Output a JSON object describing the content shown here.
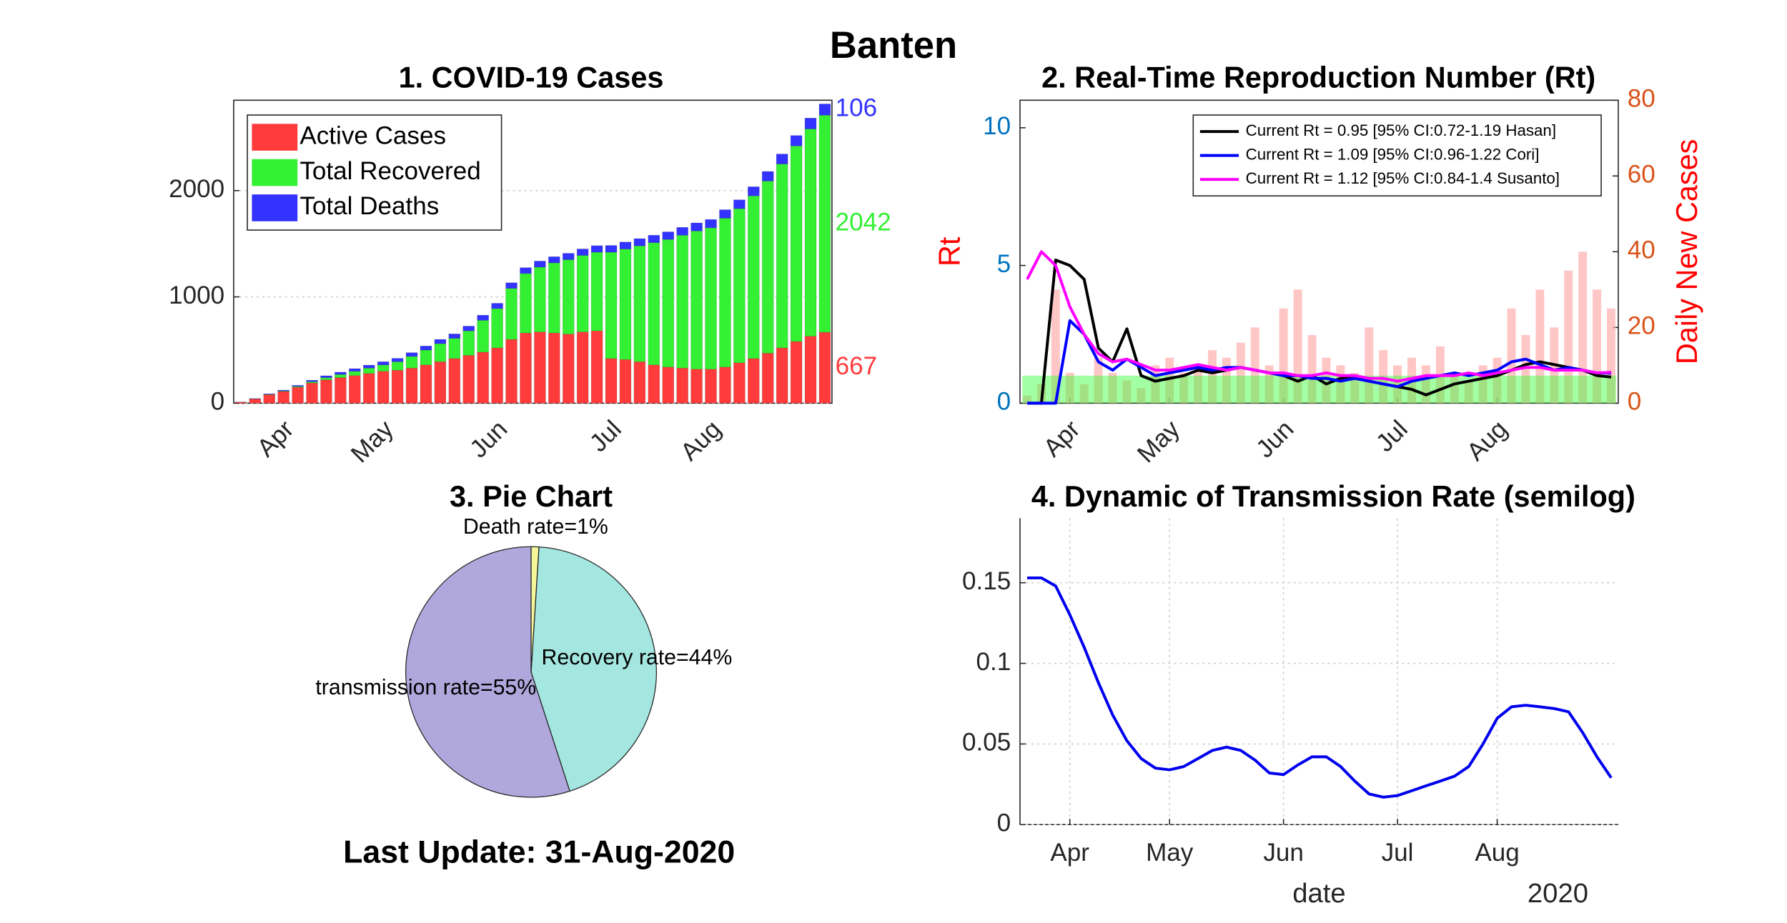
{
  "title": "Banten",
  "footer": "Last Update: 31-Aug-2020",
  "chart_data": [
    {
      "type": "bar",
      "title": "1. COVID-19 Cases",
      "stacked": true,
      "grid": true,
      "legend": "upper left",
      "last_value_labels": true,
      "categories": [
        null,
        null,
        null,
        "Apr",
        null,
        null,
        null,
        null,
        null,
        null,
        "May",
        null,
        null,
        null,
        null,
        null,
        null,
        null,
        "Jun",
        null,
        null,
        null,
        null,
        null,
        null,
        null,
        "Jul",
        null,
        null,
        null,
        null,
        null,
        null,
        "Aug",
        null,
        null,
        null,
        null,
        null,
        null,
        null,
        null
      ],
      "ylim": [
        0,
        2850
      ],
      "yticks": [
        0,
        1000,
        2000
      ],
      "series": [
        {
          "name": "Active Cases",
          "color": "#ff3b3b",
          "values": [
            10,
            40,
            80,
            110,
            150,
            190,
            220,
            240,
            260,
            280,
            300,
            310,
            330,
            360,
            390,
            420,
            450,
            480,
            520,
            600,
            660,
            670,
            660,
            650,
            670,
            680,
            420,
            410,
            390,
            360,
            340,
            330,
            320,
            320,
            340,
            380,
            420,
            470,
            520,
            580,
            630,
            667
          ]
        },
        {
          "name": "Total Recovered",
          "color": "#33f033",
          "values": [
            0,
            1,
            3,
            5,
            8,
            12,
            20,
            30,
            40,
            50,
            60,
            80,
            110,
            140,
            170,
            190,
            230,
            300,
            370,
            480,
            560,
            610,
            660,
            700,
            720,
            740,
            1000,
            1040,
            1090,
            1150,
            1200,
            1250,
            1300,
            1330,
            1400,
            1450,
            1530,
            1620,
            1730,
            1840,
            1950,
            2042
          ]
        },
        {
          "name": "Total Deaths",
          "color": "#3333ff",
          "values": [
            1,
            3,
            5,
            8,
            10,
            14,
            18,
            22,
            25,
            28,
            30,
            32,
            35,
            38,
            40,
            42,
            45,
            48,
            50,
            53,
            55,
            57,
            58,
            60,
            61,
            62,
            64,
            66,
            68,
            70,
            72,
            74,
            76,
            78,
            80,
            83,
            86,
            90,
            94,
            98,
            102,
            106
          ]
        }
      ]
    },
    {
      "type": "line",
      "title": "2. Real-Time Reproduction Number (Rt)",
      "ylabel": "Rt",
      "y2label": "Daily New Cases",
      "ylabel_color": "#ff0000",
      "ytick_color": "#0072bd",
      "y2tick_color": "#d95319",
      "legend": "upper right",
      "threshold": 1,
      "threshold_color": "#33ff33",
      "categories": [
        null,
        null,
        null,
        "Apr",
        null,
        null,
        null,
        null,
        null,
        null,
        "May",
        null,
        null,
        null,
        null,
        null,
        null,
        null,
        "Jun",
        null,
        null,
        null,
        null,
        null,
        null,
        null,
        "Jul",
        null,
        null,
        null,
        null,
        null,
        null,
        "Aug",
        null,
        null,
        null,
        null,
        null,
        null,
        null,
        null
      ],
      "ylim": [
        0,
        11
      ],
      "yticks": [
        0,
        5,
        10
      ],
      "y2lim": [
        0,
        80
      ],
      "y2ticks": [
        0,
        20,
        40,
        60,
        80
      ],
      "series": [
        {
          "type": "bar",
          "axis": "y2",
          "color": "#ffb3b3",
          "values": [
            2,
            5,
            30,
            8,
            5,
            12,
            8,
            6,
            4,
            10,
            12,
            8,
            10,
            14,
            12,
            16,
            20,
            10,
            25,
            30,
            18,
            12,
            10,
            8,
            20,
            14,
            10,
            12,
            10,
            15,
            8,
            6,
            10,
            12,
            25,
            18,
            30,
            20,
            35,
            40,
            30,
            25
          ]
        },
        {
          "name": "Current Rt = 0.95 [95% CI:0.72-1.19 Hasan]",
          "color": "#000000",
          "values": [
            0,
            0,
            5.2,
            5.0,
            4.5,
            2,
            1.5,
            2.7,
            1,
            0.8,
            0.9,
            1.0,
            1.2,
            1.1,
            1.2,
            1.3,
            1.2,
            1.1,
            1.0,
            0.8,
            1.0,
            0.7,
            0.9,
            1.0,
            0.8,
            0.7,
            0.6,
            0.5,
            0.3,
            0.5,
            0.7,
            0.8,
            0.9,
            1.0,
            1.2,
            1.4,
            1.5,
            1.4,
            1.3,
            1.2,
            1.0,
            0.95
          ]
        },
        {
          "name": "Current Rt = 1.09 [95% CI:0.96-1.22 Cori]",
          "color": "#0000ff",
          "values": [
            0,
            0,
            0,
            3,
            2.5,
            1.5,
            1.2,
            1.6,
            1.3,
            1.0,
            1.1,
            1.2,
            1.3,
            1.2,
            1.3,
            1.3,
            1.2,
            1.1,
            1.0,
            1.0,
            0.9,
            0.9,
            0.8,
            0.9,
            0.8,
            0.7,
            0.6,
            0.8,
            0.9,
            1.0,
            1.1,
            1.0,
            1.1,
            1.2,
            1.5,
            1.6,
            1.4,
            1.2,
            1.3,
            1.2,
            1.1,
            1.09
          ]
        },
        {
          "name": "Current Rt = 1.12 [95% CI:0.84-1.4 Susanto]",
          "color": "#ff00ff",
          "values": [
            4.5,
            5.5,
            5.0,
            3.5,
            2.5,
            1.8,
            1.5,
            1.6,
            1.4,
            1.2,
            1.2,
            1.3,
            1.4,
            1.3,
            1.2,
            1.3,
            1.2,
            1.1,
            1.1,
            1.0,
            1.0,
            1.1,
            1.0,
            1.0,
            0.9,
            0.9,
            0.8,
            0.9,
            1.0,
            1.0,
            1.0,
            1.1,
            1.0,
            1.1,
            1.2,
            1.3,
            1.3,
            1.2,
            1.2,
            1.2,
            1.1,
            1.12
          ]
        }
      ]
    },
    {
      "type": "pie",
      "title": "3. Pie Chart",
      "labels": [
        "transmission rate=55%",
        "Recovery rate=44%",
        "Death rate=1%"
      ],
      "values": [
        55,
        44,
        1
      ],
      "colors": [
        "#b0a8dc",
        "#a4e6e0",
        "#f5f59a"
      ]
    },
    {
      "type": "line",
      "title": "4. Dynamic of Transmission Rate (semilog)",
      "xlabel": "date",
      "year_label": "2020",
      "grid": true,
      "box": false,
      "color": "#0000ee",
      "categories": [
        null,
        null,
        null,
        "Apr",
        null,
        null,
        null,
        null,
        null,
        null,
        "May",
        null,
        null,
        null,
        null,
        null,
        null,
        null,
        "Jun",
        null,
        null,
        null,
        null,
        null,
        null,
        null,
        "Jul",
        null,
        null,
        null,
        null,
        null,
        null,
        "Aug",
        null,
        null,
        null,
        null,
        null,
        null,
        null,
        null
      ],
      "ylim": [
        0,
        0.19
      ],
      "yticks": [
        0,
        0.05,
        0.1,
        0.15
      ],
      "values": [
        0.153,
        0.153,
        0.148,
        0.13,
        0.11,
        0.088,
        0.068,
        0.052,
        0.041,
        0.035,
        0.034,
        0.036,
        0.041,
        0.046,
        0.048,
        0.046,
        0.04,
        0.032,
        0.031,
        0.037,
        0.042,
        0.042,
        0.036,
        0.027,
        0.019,
        0.017,
        0.018,
        0.021,
        0.024,
        0.027,
        0.03,
        0.036,
        0.05,
        0.066,
        0.073,
        0.074,
        0.073,
        0.072,
        0.07,
        0.057,
        0.042,
        0.029
      ]
    }
  ]
}
